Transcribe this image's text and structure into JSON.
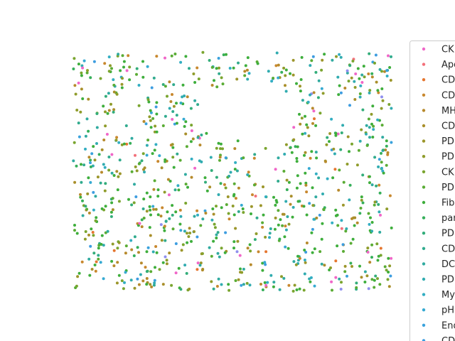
{
  "chart_data": {
    "type": "scatter",
    "title": "",
    "xlabel": "",
    "ylabel": "",
    "axes_visible": false,
    "grid": false,
    "legend_placement": "right, outside plot, clipped",
    "marker": "small filled circle",
    "point_count_approx": 1000,
    "distribution": "points spread roughly uniformly over the rectangular tissue region; green and olive classes dominate, teal second, pink/orange/blue sparse",
    "x_range": [
      0,
      1
    ],
    "y_range": [
      0,
      1
    ],
    "legend": [
      {
        "label": "CK",
        "color": "#f066c8",
        "count": 28
      },
      {
        "label": "Apo",
        "color": "#f2707a",
        "count": 4
      },
      {
        "label": "CD",
        "color": "#e5762f",
        "count": 10
      },
      {
        "label": "CD",
        "color": "#c8882e",
        "count": 40
      },
      {
        "label": "MH",
        "color": "#b78a2c",
        "count": 60
      },
      {
        "label": "CD",
        "color": "#a98f2b",
        "count": 40
      },
      {
        "label": "PD",
        "color": "#9c962b",
        "count": 50
      },
      {
        "label": "PD",
        "color": "#8f9c2b",
        "count": 60
      },
      {
        "label": "CK",
        "color": "#7aa52f",
        "count": 70
      },
      {
        "label": "PD",
        "color": "#5aac35",
        "count": 80
      },
      {
        "label": "Fib",
        "color": "#3eae3c",
        "count": 220
      },
      {
        "label": "par",
        "color": "#36af5a",
        "count": 30
      },
      {
        "label": "PD",
        "color": "#33ad7a",
        "count": 40
      },
      {
        "label": "CD",
        "color": "#31ab8e",
        "count": 40
      },
      {
        "label": "DC",
        "color": "#31aba0",
        "count": 60
      },
      {
        "label": "PD",
        "color": "#31acb0",
        "count": 60
      },
      {
        "label": "My",
        "color": "#33aec2",
        "count": 40
      },
      {
        "label": "pH",
        "color": "#36aad2",
        "count": 20
      },
      {
        "label": "End",
        "color": "#3aa2dc",
        "count": 20
      },
      {
        "label": "CD",
        "color": "#3d9de0",
        "count": 20
      },
      {
        "label": "",
        "color": "#8f8fee",
        "count": 8
      }
    ]
  }
}
